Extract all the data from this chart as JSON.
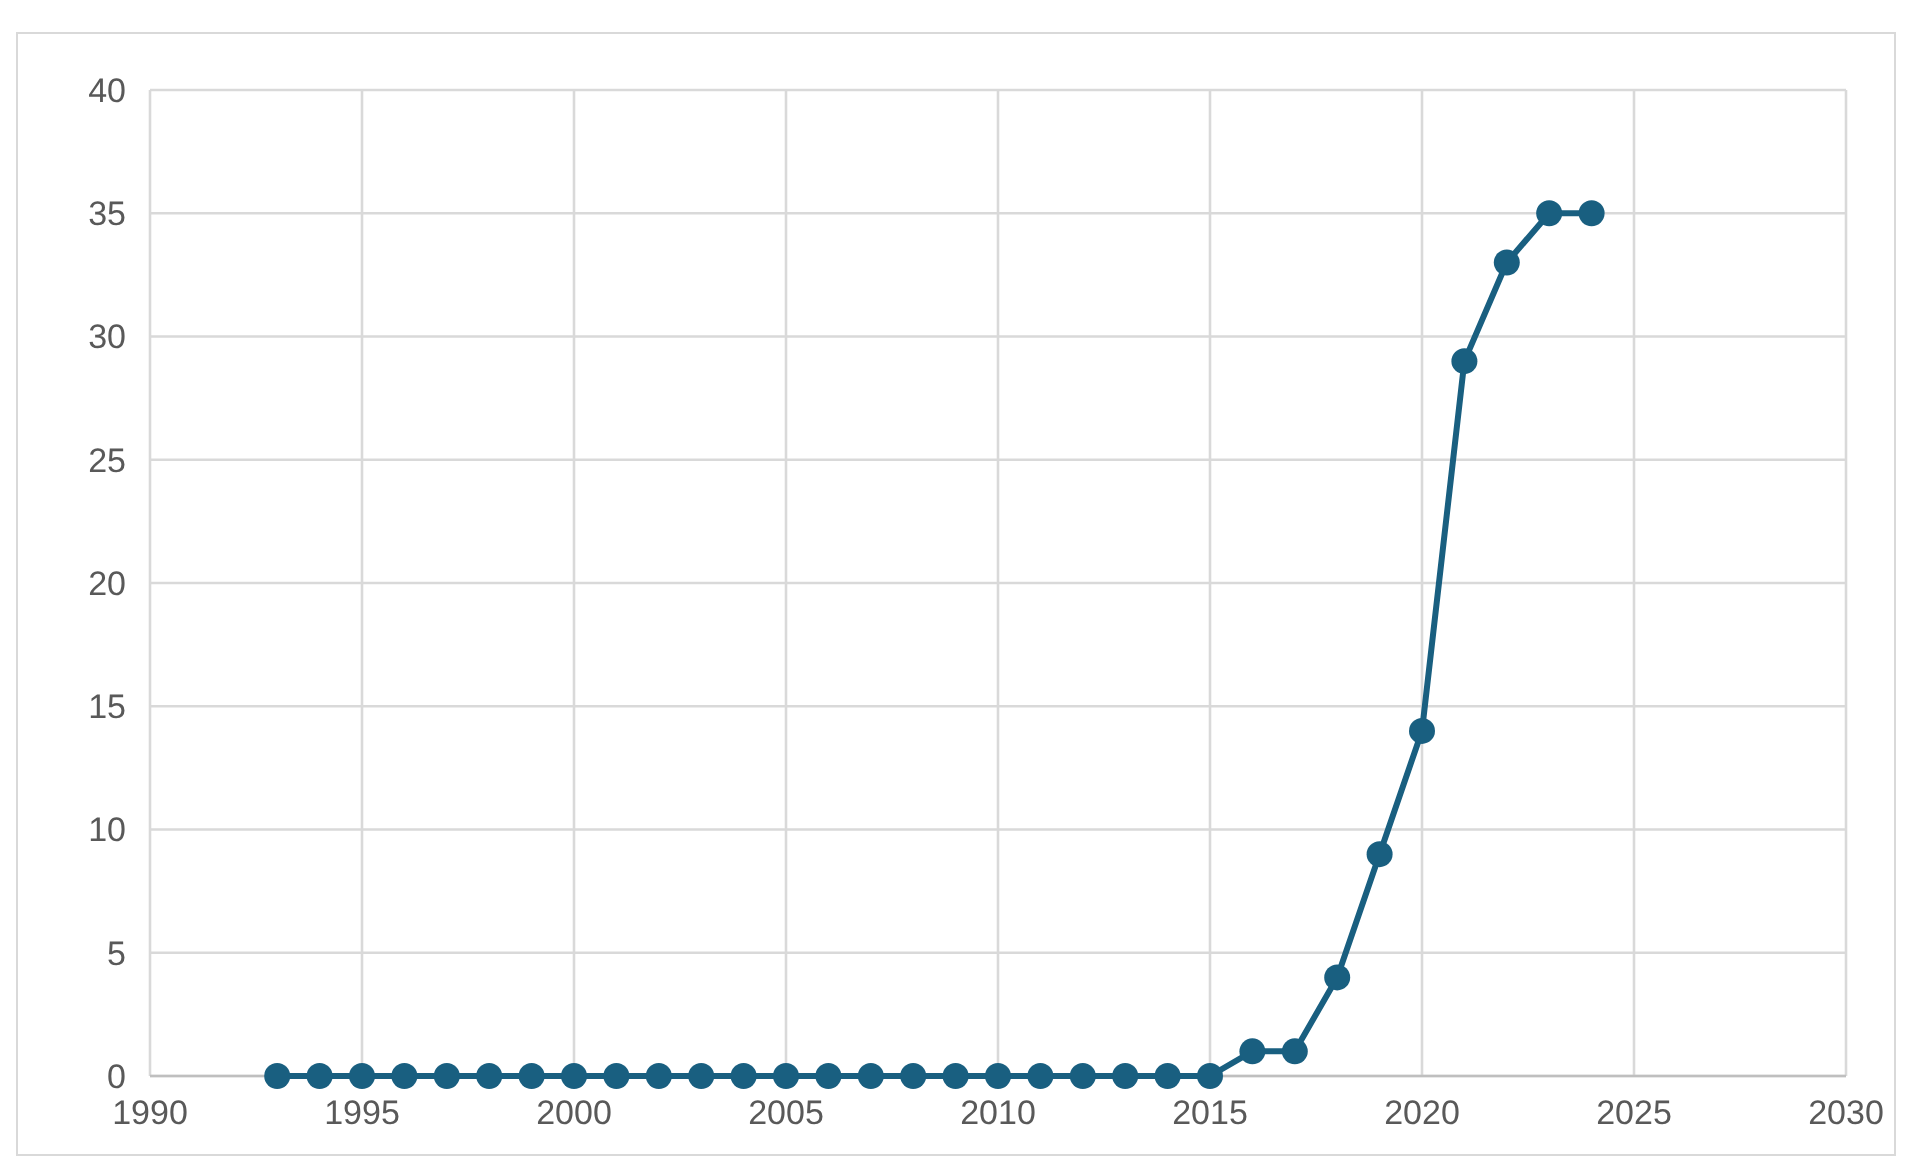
{
  "chart_data": {
    "type": "line",
    "x": [
      1993,
      1994,
      1995,
      1996,
      1997,
      1998,
      1999,
      2000,
      2001,
      2002,
      2003,
      2004,
      2005,
      2006,
      2007,
      2008,
      2009,
      2010,
      2011,
      2012,
      2013,
      2014,
      2015,
      2016,
      2017,
      2018,
      2019,
      2020,
      2021,
      2022,
      2023,
      2024
    ],
    "series": [
      {
        "color": "#195f80",
        "values": [
          0,
          0,
          0,
          0,
          0,
          0,
          0,
          0,
          0,
          0,
          0,
          0,
          0,
          0,
          0,
          0,
          0,
          0,
          0,
          0,
          0,
          0,
          0,
          1,
          1,
          4,
          9,
          14,
          29,
          33,
          35,
          35
        ]
      }
    ],
    "xlim": [
      1990,
      2030
    ],
    "xticks": [
      1990,
      1995,
      2000,
      2005,
      2010,
      2015,
      2020,
      2025,
      2030
    ],
    "ylim": [
      0,
      40
    ],
    "yticks": [
      0,
      5,
      10,
      15,
      20,
      25,
      30,
      35,
      40
    ],
    "grid": true,
    "marker": "circle",
    "line_style": "solid"
  }
}
